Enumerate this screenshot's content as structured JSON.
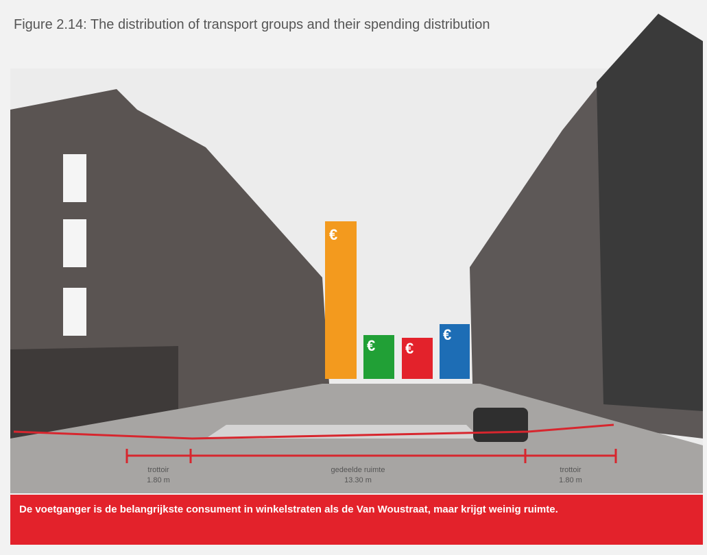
{
  "header": {
    "title": "Figure 2.14: The distribution of transport groups and their spending distribution"
  },
  "icon_symbol": "€",
  "measurements": [
    {
      "label": "trottoir",
      "width": "1.80 m"
    },
    {
      "label": "gedeelde ruimte",
      "width": "13.30 m"
    },
    {
      "label": "trottoir",
      "width": "1.80 m"
    }
  ],
  "caption": "De voetganger is de belangrijkste consument in winkelstraten als de Van Woustraat, maar krijgt weinig ruimte."
}
